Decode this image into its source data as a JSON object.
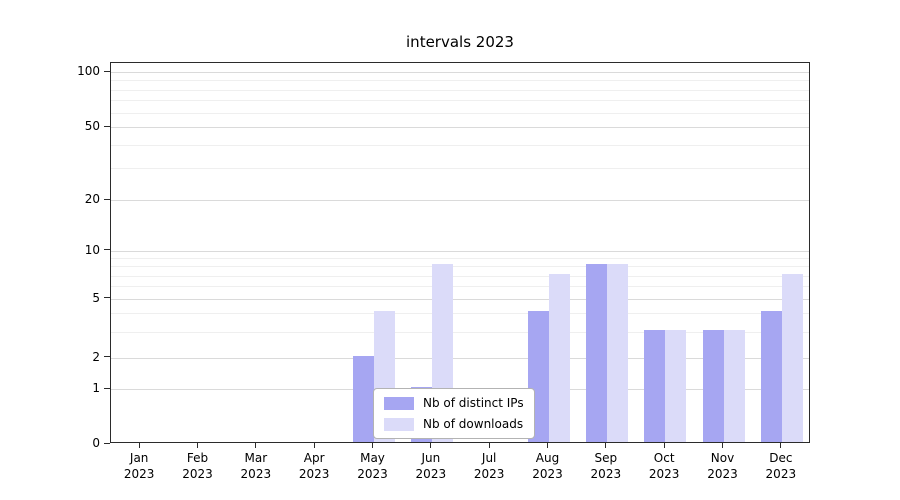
{
  "chart_data": {
    "type": "bar",
    "title": "intervals 2023",
    "scale": "symlog",
    "grid": true,
    "legend_position": "lower center",
    "categories": [
      "Jan",
      "Feb",
      "Mar",
      "Apr",
      "May",
      "Jun",
      "Jul",
      "Aug",
      "Sep",
      "Oct",
      "Nov",
      "Dec"
    ],
    "year_label": "2023",
    "yticks": [
      0,
      1,
      2,
      5,
      10,
      20,
      50,
      100
    ],
    "minor_gridlines": [
      3,
      4,
      6,
      7,
      8,
      9,
      30,
      40,
      60,
      70,
      80,
      90
    ],
    "ylim": [
      0,
      110
    ],
    "series": [
      {
        "name": "Nb of distinct IPs",
        "color": "#a6a6f2",
        "values": [
          0,
          0,
          0,
          0,
          2,
          1,
          0,
          4,
          8,
          3,
          3,
          4
        ]
      },
      {
        "name": "Nb of downloads",
        "color": "#dbdbf9",
        "values": [
          0,
          0,
          0,
          0,
          4,
          8,
          0,
          7,
          8,
          3,
          3,
          7
        ]
      }
    ]
  }
}
